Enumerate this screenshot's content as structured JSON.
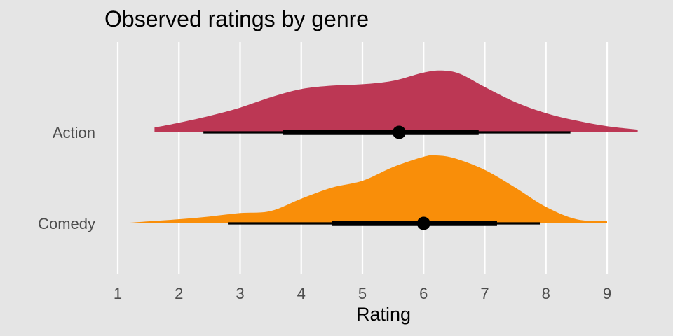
{
  "chart_data": {
    "type": "halfeye",
    "title": "Observed ratings by genre",
    "xlabel": "Rating",
    "ylabel": "",
    "xlim": [
      1,
      9
    ],
    "x_ticks": [
      "1",
      "2",
      "3",
      "4",
      "5",
      "6",
      "7",
      "8",
      "9"
    ],
    "grid": "vertical major lines",
    "legend": "none",
    "categories": [
      "Action",
      "Comedy"
    ],
    "series": [
      {
        "name": "Action",
        "color": "#bc3754",
        "density": {
          "x": [
            1.6,
            2.0,
            2.5,
            3.0,
            3.5,
            4.0,
            4.5,
            5.0,
            5.5,
            6.0,
            6.3,
            6.6,
            7.0,
            7.5,
            8.0,
            8.5,
            9.0,
            9.5
          ],
          "y": [
            0.07,
            0.14,
            0.24,
            0.36,
            0.51,
            0.63,
            0.68,
            0.7,
            0.75,
            0.87,
            0.9,
            0.85,
            0.66,
            0.44,
            0.28,
            0.17,
            0.09,
            0.04
          ]
        },
        "point": 5.6,
        "interval_66": [
          3.7,
          6.9
        ],
        "interval_95": [
          2.4,
          8.4
        ]
      },
      {
        "name": "Comedy",
        "color": "#f98e09",
        "density": {
          "x": [
            1.2,
            1.5,
            2.0,
            2.5,
            3.0,
            3.5,
            4.0,
            4.5,
            5.0,
            5.5,
            6.0,
            6.2,
            6.5,
            7.0,
            7.5,
            8.0,
            8.5,
            9.0
          ],
          "y": [
            0.01,
            0.03,
            0.06,
            0.1,
            0.15,
            0.18,
            0.36,
            0.52,
            0.62,
            0.82,
            0.97,
            0.99,
            0.95,
            0.78,
            0.52,
            0.24,
            0.06,
            0.03
          ]
        },
        "point": 6.0,
        "interval_66": [
          4.5,
          7.2
        ],
        "interval_95": [
          2.8,
          7.9
        ]
      }
    ]
  }
}
